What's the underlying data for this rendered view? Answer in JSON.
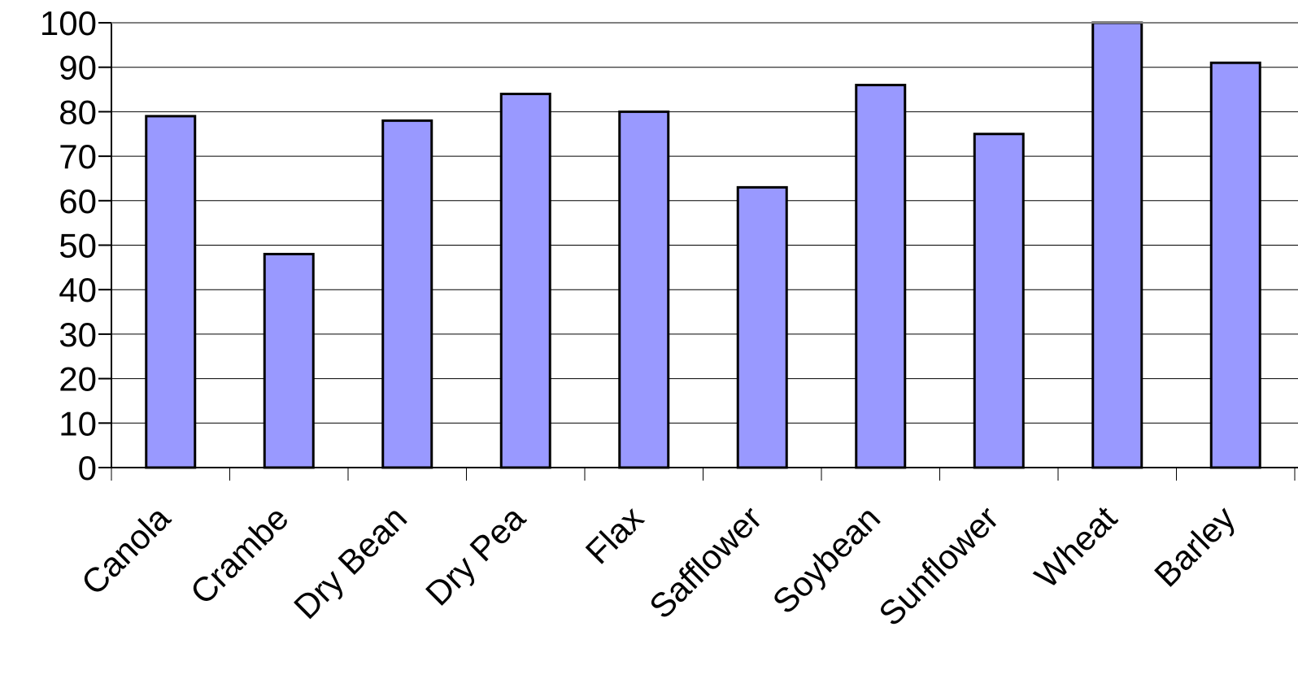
{
  "chart_data": {
    "type": "bar",
    "categories": [
      "Canola",
      "Crambe",
      "Dry Bean",
      "Dry Pea",
      "Flax",
      "Safflower",
      "Soybean",
      "Sunflower",
      "Wheat",
      "Barley"
    ],
    "values": [
      79,
      48,
      78,
      84,
      80,
      63,
      86,
      75,
      100,
      91
    ],
    "title": "",
    "xlabel": "",
    "ylabel": "",
    "ylim": [
      0,
      100
    ],
    "yticks": [
      "0",
      "10",
      "20",
      "30",
      "40",
      "50",
      "60",
      "70",
      "80",
      "90",
      "100"
    ],
    "grid": "horizontal",
    "legend": "none",
    "bar_color": "#9999ff",
    "bar_edge_color": "#000000"
  }
}
